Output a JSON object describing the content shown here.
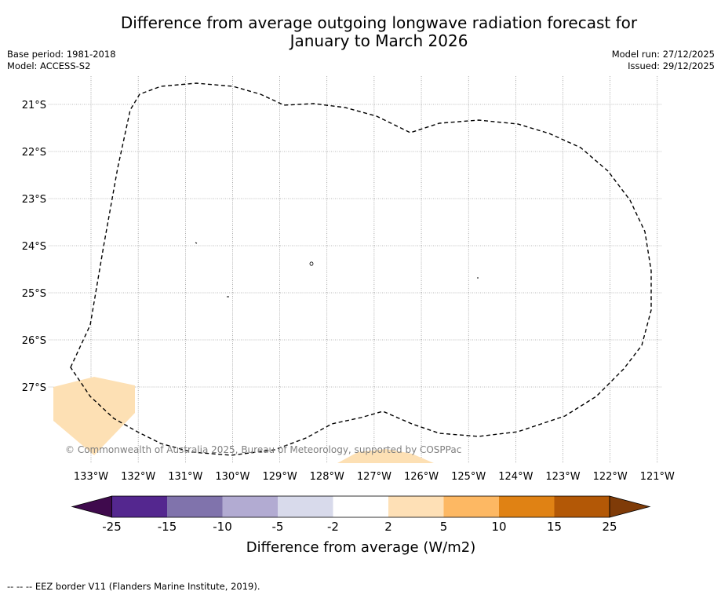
{
  "header": {
    "title_line1": "Difference from average outgoing longwave radiation forecast for",
    "title_line2": "January to March 2026",
    "base_period": "Base period: 1981-2018",
    "model": "Model: ACCESS-S2",
    "model_run": "Model run: 27/12/2025",
    "issued": "Issued: 29/12/2025"
  },
  "map": {
    "lat_labels": [
      "21°S",
      "22°S",
      "23°S",
      "24°S",
      "25°S",
      "26°S",
      "27°S"
    ],
    "lon_labels": [
      "133°W",
      "132°W",
      "131°W",
      "130°W",
      "129°W",
      "128°W",
      "127°W",
      "126°W",
      "125°W",
      "124°W",
      "123°W",
      "122°W",
      "121°W"
    ],
    "copyright": "© Commonwealth of Australia 2025, Bureau of Meteorology, supported by COSPPac",
    "anomaly_fill_color": "#fde0b4"
  },
  "colorbar": {
    "title": "Difference from average (W/m2)",
    "tick_labels": [
      "-25",
      "-15",
      "-10",
      "-5",
      "-2",
      "2",
      "5",
      "10",
      "15",
      "25"
    ],
    "colors": [
      "#3f0a4d",
      "#54278f",
      "#8073ac",
      "#b2abd2",
      "#d8daeb",
      "#ffffff",
      "#fee0b6",
      "#fdb863",
      "#e08214",
      "#b35806",
      "#7f3b08"
    ]
  },
  "footer": {
    "legend_line": "--  --  -- EEZ border V11 (Flanders Marine Institute, 2019)."
  }
}
